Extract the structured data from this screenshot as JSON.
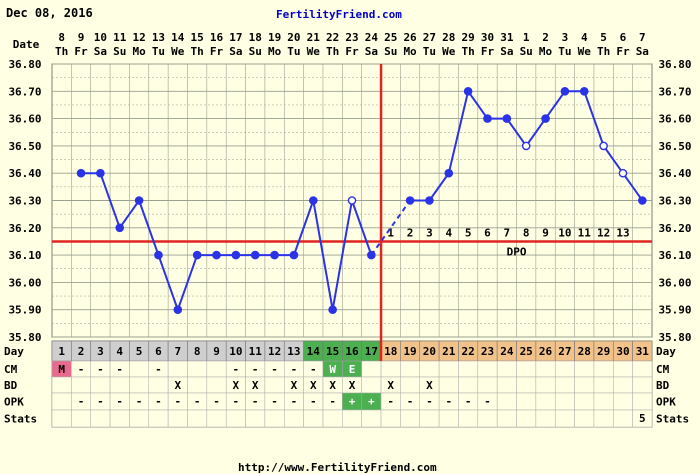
{
  "header": {
    "date": "Dec 08, 2016",
    "site": "FertilityFriend.com"
  },
  "footer": {
    "url": "http://www.FertilityFriend.com"
  },
  "colors": {
    "background": "#ffffe3",
    "temp_line": "#2a33e6",
    "coverline": "#e0251f",
    "ovulation_line": "#e0251f",
    "day_gray": "#cfcfcf",
    "day_green": "#4caf50",
    "day_orange": "#f2c28b",
    "menstruation": "#e86a8c",
    "grid": "#9aa08f"
  },
  "row_labels": {
    "date": "Date",
    "day": "Day",
    "cm": "CM",
    "bd": "BD",
    "opk": "OPK",
    "stats": "Stats"
  },
  "chart_data": {
    "type": "line",
    "title": "",
    "xlabel": "",
    "ylabel": "",
    "ylim": [
      35.8,
      36.8
    ],
    "y_ticks": [
      "36.80",
      "36.70",
      "36.60",
      "36.50",
      "36.40",
      "36.30",
      "36.20",
      "36.10",
      "36.00",
      "35.90",
      "35.80"
    ],
    "grid": true,
    "dates": [
      "8",
      "9",
      "10",
      "11",
      "12",
      "13",
      "14",
      "15",
      "16",
      "17",
      "18",
      "19",
      "20",
      "21",
      "22",
      "23",
      "24",
      "25",
      "26",
      "27",
      "28",
      "29",
      "30",
      "31",
      "1",
      "2",
      "3",
      "4",
      "5",
      "6",
      "7"
    ],
    "weekdays": [
      "Th",
      "Fr",
      "Sa",
      "Su",
      "Mo",
      "Tu",
      "We",
      "Th",
      "Fr",
      "Sa",
      "Su",
      "Mo",
      "Tu",
      "We",
      "Th",
      "Fr",
      "Sa",
      "Su",
      "Mo",
      "Tu",
      "We",
      "Th",
      "Fr",
      "Sa",
      "Su",
      "Mo",
      "Tu",
      "We",
      "Th",
      "Fr",
      "Sa"
    ],
    "cycle_days": [
      1,
      2,
      3,
      4,
      5,
      6,
      7,
      8,
      9,
      10,
      11,
      12,
      13,
      14,
      15,
      16,
      17,
      18,
      19,
      20,
      21,
      22,
      23,
      24,
      25,
      26,
      27,
      28,
      29,
      30,
      31
    ],
    "day_phase": [
      "m",
      "g",
      "g",
      "g",
      "g",
      "g",
      "g",
      "g",
      "g",
      "g",
      "g",
      "g",
      "g",
      "f",
      "f",
      "f",
      "f",
      "l",
      "l",
      "l",
      "l",
      "l",
      "l",
      "l",
      "l",
      "l",
      "l",
      "l",
      "l",
      "l",
      "l"
    ],
    "temperatures": [
      null,
      36.4,
      36.4,
      36.2,
      36.3,
      36.1,
      35.9,
      36.1,
      36.1,
      36.1,
      36.1,
      36.1,
      36.1,
      36.3,
      35.9,
      36.3,
      36.1,
      null,
      36.3,
      36.3,
      36.4,
      36.7,
      36.6,
      36.6,
      36.5,
      36.6,
      36.7,
      36.7,
      36.5,
      36.4,
      36.3
    ],
    "open_points": [
      16,
      25,
      29,
      30
    ],
    "dashed_segments": [
      [
        17,
        19
      ]
    ],
    "coverline": 36.15,
    "ovulation_day": 17,
    "dpo_label": "DPO",
    "dpo_numbers": [
      "1",
      "2",
      "3",
      "4",
      "5",
      "6",
      "7",
      "8",
      "9",
      "10",
      "11",
      "12",
      "13"
    ],
    "cm": [
      "M",
      "-",
      "-",
      "-",
      "",
      "-",
      "",
      "",
      "",
      "-",
      "-",
      "-",
      "-",
      "-",
      "W",
      "E",
      "",
      "",
      "",
      "",
      "",
      "",
      "",
      "",
      "",
      "",
      "",
      "",
      "",
      "",
      ""
    ],
    "bd": [
      "",
      "",
      "",
      "",
      "",
      "",
      "X",
      "",
      "",
      "X",
      "X",
      "",
      "X",
      "X",
      "X",
      "X",
      "",
      "X",
      "",
      "X",
      "",
      "",
      "",
      "",
      "",
      "",
      "",
      "",
      "",
      "",
      ""
    ],
    "opk": [
      "",
      "-",
      "-",
      "-",
      "-",
      "-",
      "-",
      "-",
      "-",
      "-",
      "-",
      "-",
      "-",
      "-",
      "-",
      "+",
      "+",
      "-",
      "-",
      "-",
      "-",
      "-",
      "-",
      "",
      "",
      "",
      "",
      "",
      "",
      "",
      ""
    ],
    "stats": [
      "",
      "",
      "",
      "",
      "",
      "",
      "",
      "",
      "",
      "",
      "",
      "",
      "",
      "",
      "",
      "",
      "",
      "",
      "",
      "",
      "",
      "",
      "",
      "",
      "",
      "",
      "",
      "",
      "",
      "",
      "5"
    ]
  }
}
